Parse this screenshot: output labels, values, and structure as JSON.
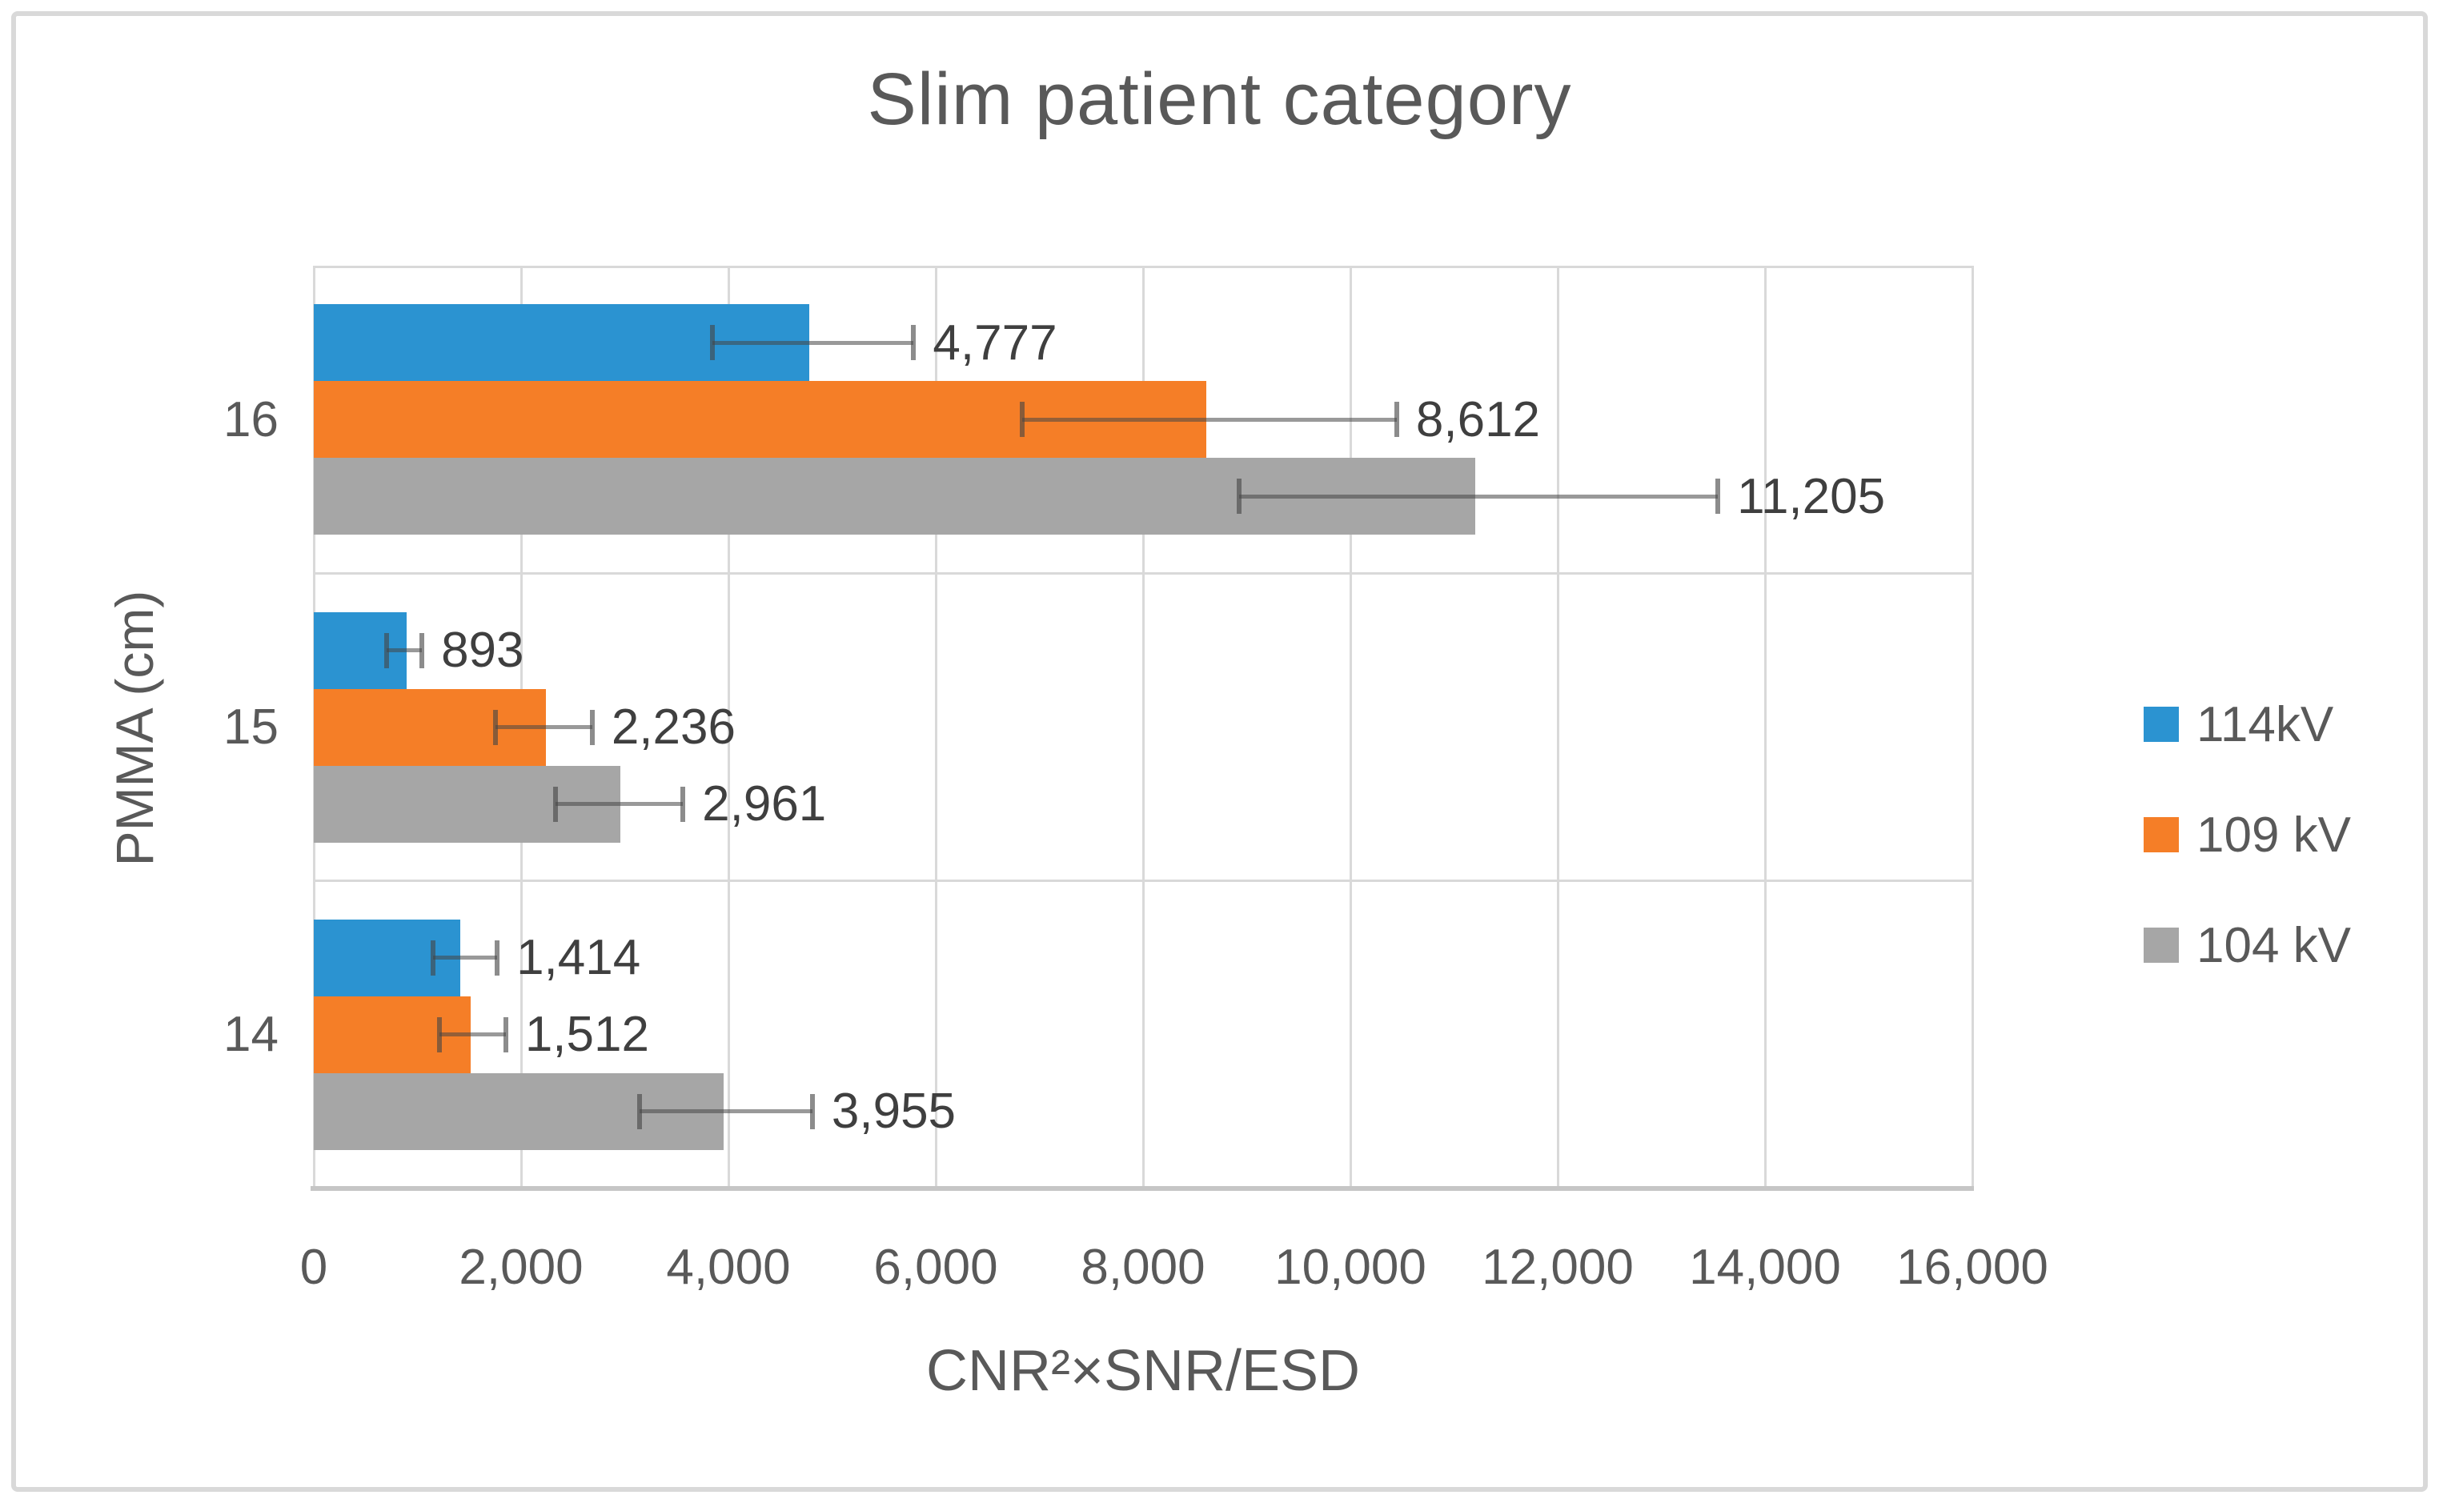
{
  "title": "Slim patient category",
  "colors": {
    "text": "#595959",
    "data_label": "#3f3f3f",
    "gridline": "#d9d9d9",
    "axis_line": "#c6c6c6",
    "frame_border": "#d9d9d9",
    "error_bar": "rgba(70,70,70,0.58)"
  },
  "chart_data": {
    "type": "bar",
    "orientation": "horizontal",
    "title": "Slim patient category",
    "xlabel": "CNR²×SNR/ESD",
    "ylabel": "PMMA (cm)",
    "categories": [
      "16",
      "15",
      "14"
    ],
    "xlim": [
      0,
      16000
    ],
    "x_ticks": [
      0,
      2000,
      4000,
      6000,
      8000,
      10000,
      12000,
      14000,
      16000
    ],
    "x_tick_labels": [
      "0",
      "2,000",
      "4,000",
      "6,000",
      "8,000",
      "10,000",
      "12,000",
      "14,000",
      "16,000"
    ],
    "grid": true,
    "legend_position": "right",
    "series": [
      {
        "name": "114kV",
        "color": "#2b93d1",
        "values": [
          4777,
          893,
          1414
        ],
        "labels": [
          "4,777",
          "893",
          "1,414"
        ],
        "error_minus": [
          930,
          190,
          265
        ],
        "error_plus": [
          1010,
          150,
          355
        ]
      },
      {
        "name": "109 kV",
        "color": "#f57e27",
        "values": [
          8612,
          2236,
          1512
        ],
        "labels": [
          "8,612",
          "2,236",
          "1,512"
        ],
        "error_minus": [
          1780,
          480,
          300
        ],
        "error_plus": [
          1835,
          450,
          340
        ]
      },
      {
        "name": "104 kV",
        "color": "#a6a6a6",
        "values": [
          11205,
          2961,
          3955
        ],
        "labels": [
          "11,205",
          "2,961",
          "3,955"
        ],
        "error_minus": [
          2280,
          630,
          810
        ],
        "error_plus": [
          2340,
          600,
          855
        ]
      }
    ]
  }
}
